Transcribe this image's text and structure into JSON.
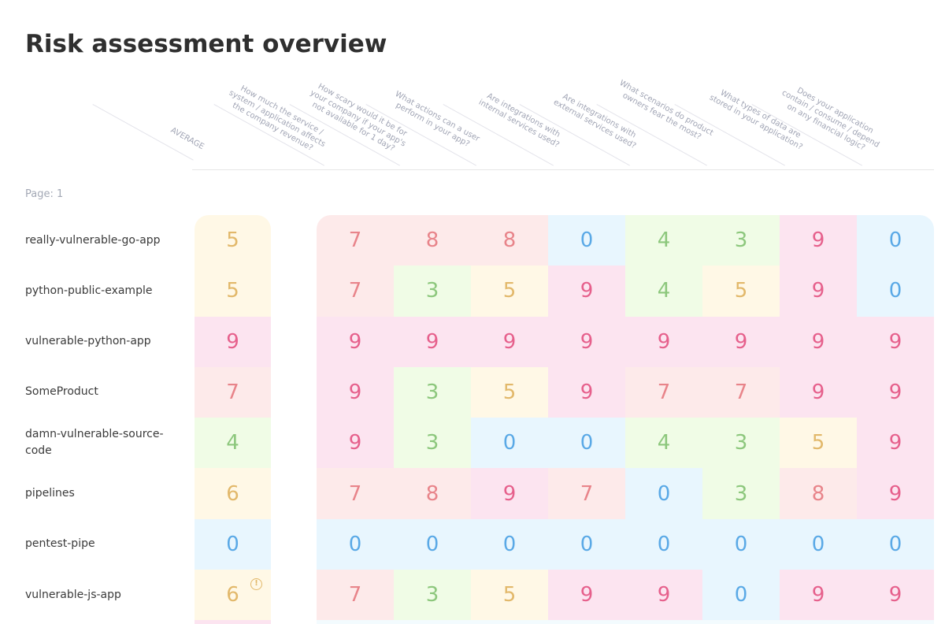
{
  "page": {
    "title": "Risk assessment overview",
    "page_indicator": "Page: 1"
  },
  "columns": {
    "average": "AVERAGE",
    "questions": [
      "How much the service /\nsystem / application affects\nthe company revenue?",
      "How scary would it be for\nyour company if your app's\nnot available for 1 day?",
      "What actions can a user\nperform in your app?",
      "Are integrations with\ninternal services used?",
      "Are integrations with\nexternal services used?",
      "What scenarios do product\nowners fear the most?",
      "What types of data are\nstored in your application?",
      "Does your application\ncontain / consume / depend\non any financial logic?"
    ]
  },
  "rows": [
    {
      "name": "really-vulnerable-go-app",
      "average": "5",
      "scores": [
        "7",
        "8",
        "8",
        "0",
        "4",
        "3",
        "9",
        "0"
      ],
      "warning": false
    },
    {
      "name": "python-public-example",
      "average": "5",
      "scores": [
        "7",
        "3",
        "5",
        "9",
        "4",
        "5",
        "9",
        "0"
      ],
      "warning": false
    },
    {
      "name": "vulnerable-python-app",
      "average": "9",
      "scores": [
        "9",
        "9",
        "9",
        "9",
        "9",
        "9",
        "9",
        "9"
      ],
      "warning": false
    },
    {
      "name": "SomeProduct",
      "average": "7",
      "scores": [
        "9",
        "3",
        "5",
        "9",
        "7",
        "7",
        "9",
        "9"
      ],
      "warning": false
    },
    {
      "name": "damn-vulnerable-source-code",
      "average": "4",
      "scores": [
        "9",
        "3",
        "0",
        "0",
        "4",
        "3",
        "5",
        "9"
      ],
      "warning": false
    },
    {
      "name": "pipelines",
      "average": "6",
      "scores": [
        "7",
        "8",
        "9",
        "7",
        "0",
        "3",
        "8",
        "9"
      ],
      "warning": false
    },
    {
      "name": "pentest-pipe",
      "average": "0",
      "scores": [
        "0",
        "0",
        "0",
        "0",
        "0",
        "0",
        "0",
        "0"
      ],
      "warning": false
    },
    {
      "name": "vulnerable-js-app",
      "average": "6",
      "scores": [
        "7",
        "3",
        "5",
        "9",
        "9",
        "0",
        "9",
        "9"
      ],
      "warning": true,
      "warning_icon": "!"
    }
  ],
  "colors": {
    "score_0": "#5aa9e6",
    "score_3_4": "#8cc77c",
    "score_5_6": "#e2b86a",
    "score_7_8": "#e8848a",
    "score_9": "#e6608c"
  }
}
